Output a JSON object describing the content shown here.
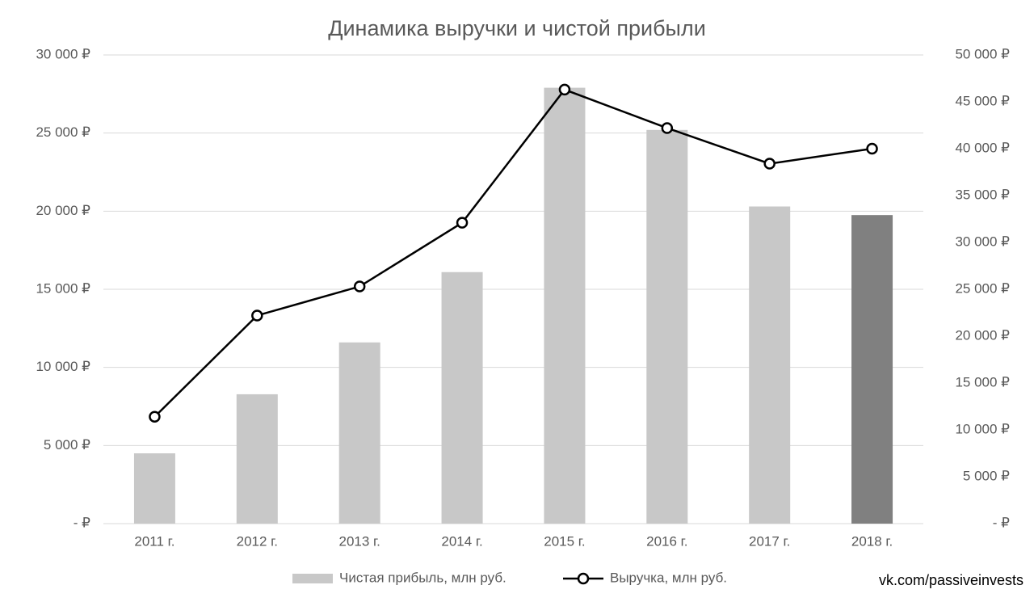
{
  "chart_data": {
    "type": "bar-line",
    "title": "Динамика выручки и чистой прибыли",
    "categories": [
      "2011 г.",
      "2012 г.",
      "2013 г.",
      "2014 г.",
      "2015 г.",
      "2016 г.",
      "2017 г.",
      "2018 г."
    ],
    "series": [
      {
        "name": "Чистая прибыль, млн руб.",
        "type": "bar",
        "color": "#c8c8c8",
        "colors": [
          "#c8c8c8",
          "#c8c8c8",
          "#c8c8c8",
          "#c8c8c8",
          "#c8c8c8",
          "#c8c8c8",
          "#c8c8c8",
          "#808080"
        ],
        "values": [
          4500,
          8280,
          11600,
          16100,
          27900,
          25200,
          20300,
          19750
        ]
      },
      {
        "name": "Выручка, млн руб.",
        "type": "line",
        "axis": "y2",
        "color": "#000000",
        "values": [
          11400,
          22200,
          25300,
          32100,
          46300,
          42200,
          38400,
          40000
        ]
      }
    ],
    "ylim": [
      0,
      30000
    ],
    "yticks": [
      {
        "value": 0,
        "label": "-  ₽"
      },
      {
        "value": 5000,
        "label": "5 000 ₽"
      },
      {
        "value": 10000,
        "label": "10 000 ₽"
      },
      {
        "value": 15000,
        "label": "15 000 ₽"
      },
      {
        "value": 20000,
        "label": "20 000 ₽"
      },
      {
        "value": 25000,
        "label": "25 000 ₽"
      },
      {
        "value": 30000,
        "label": "30 000 ₽"
      }
    ],
    "y2lim": [
      0,
      50000
    ],
    "y2ticks": [
      {
        "value": 0,
        "label": "-  ₽"
      },
      {
        "value": 5000,
        "label": "5 000 ₽"
      },
      {
        "value": 10000,
        "label": "10 000 ₽"
      },
      {
        "value": 15000,
        "label": "15 000 ₽"
      },
      {
        "value": 20000,
        "label": "20 000 ₽"
      },
      {
        "value": 25000,
        "label": "25 000 ₽"
      },
      {
        "value": 30000,
        "label": "30 000 ₽"
      },
      {
        "value": 35000,
        "label": "35 000 ₽"
      },
      {
        "value": 40000,
        "label": "40 000 ₽"
      },
      {
        "value": 45000,
        "label": "45 000 ₽"
      },
      {
        "value": 50000,
        "label": "50 000 ₽"
      }
    ],
    "grid": true,
    "legend": "bottom",
    "annotation": "vk.com/passiveinvests"
  }
}
